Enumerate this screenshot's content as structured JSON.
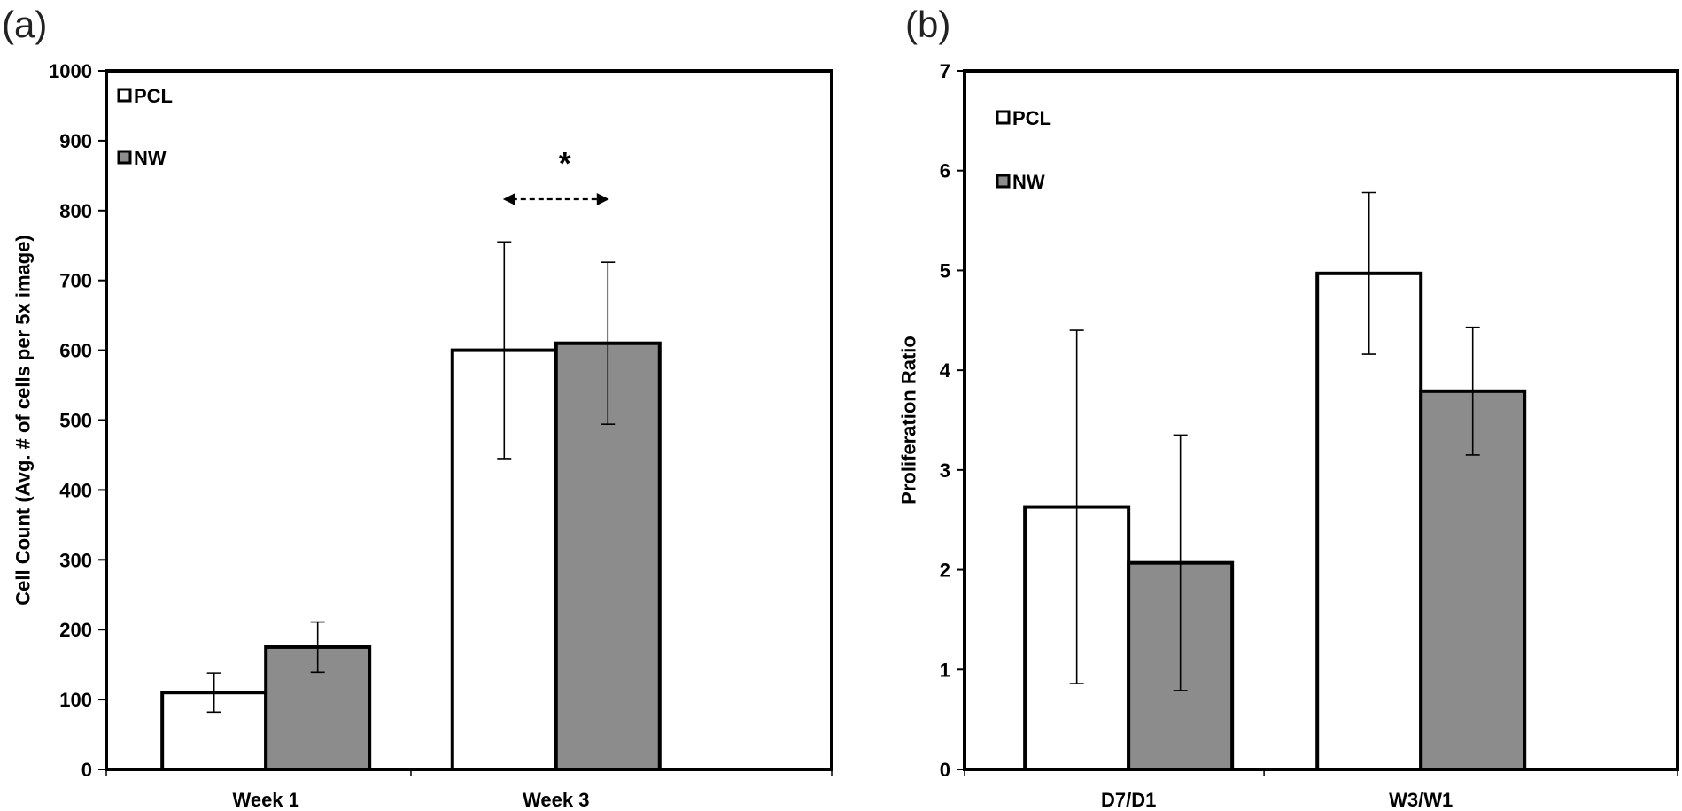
{
  "colors": {
    "PCL": "#ffffff",
    "NW": "#8c8c8c",
    "stroke": "#000000"
  },
  "chart_data": [
    {
      "panel": "(a)",
      "type": "bar",
      "ylabel": "Cell Count (Avg. # of cells per 5x image)",
      "xlabel": "",
      "ylim": [
        0,
        1000
      ],
      "yticks": [
        0,
        100,
        200,
        300,
        400,
        500,
        600,
        700,
        800,
        900,
        1000
      ],
      "categories": [
        "Week 1",
        "Week 3"
      ],
      "series": [
        {
          "name": "PCL",
          "values": [
            110,
            600
          ],
          "errors": [
            28,
            155
          ]
        },
        {
          "name": "NW",
          "values": [
            175,
            610
          ],
          "errors": [
            36,
            116
          ]
        }
      ],
      "legend": "top-left",
      "grid": false,
      "annotation": {
        "text": "*",
        "category": "Week 3",
        "note": "dashed double-headed arrow"
      }
    },
    {
      "panel": "(b)",
      "type": "bar",
      "ylabel": "Proliferation Ratio",
      "xlabel": "",
      "ylim": [
        0,
        7
      ],
      "yticks": [
        0,
        1,
        2,
        3,
        4,
        5,
        6,
        7
      ],
      "categories": [
        "D7/D1",
        "W3/W1"
      ],
      "series": [
        {
          "name": "PCL",
          "values": [
            2.63,
            4.97
          ],
          "errors": [
            1.77,
            0.81
          ]
        },
        {
          "name": "NW",
          "values": [
            2.07,
            3.79
          ],
          "errors": [
            1.28,
            0.64
          ]
        }
      ],
      "legend": "top-left",
      "grid": false
    }
  ]
}
